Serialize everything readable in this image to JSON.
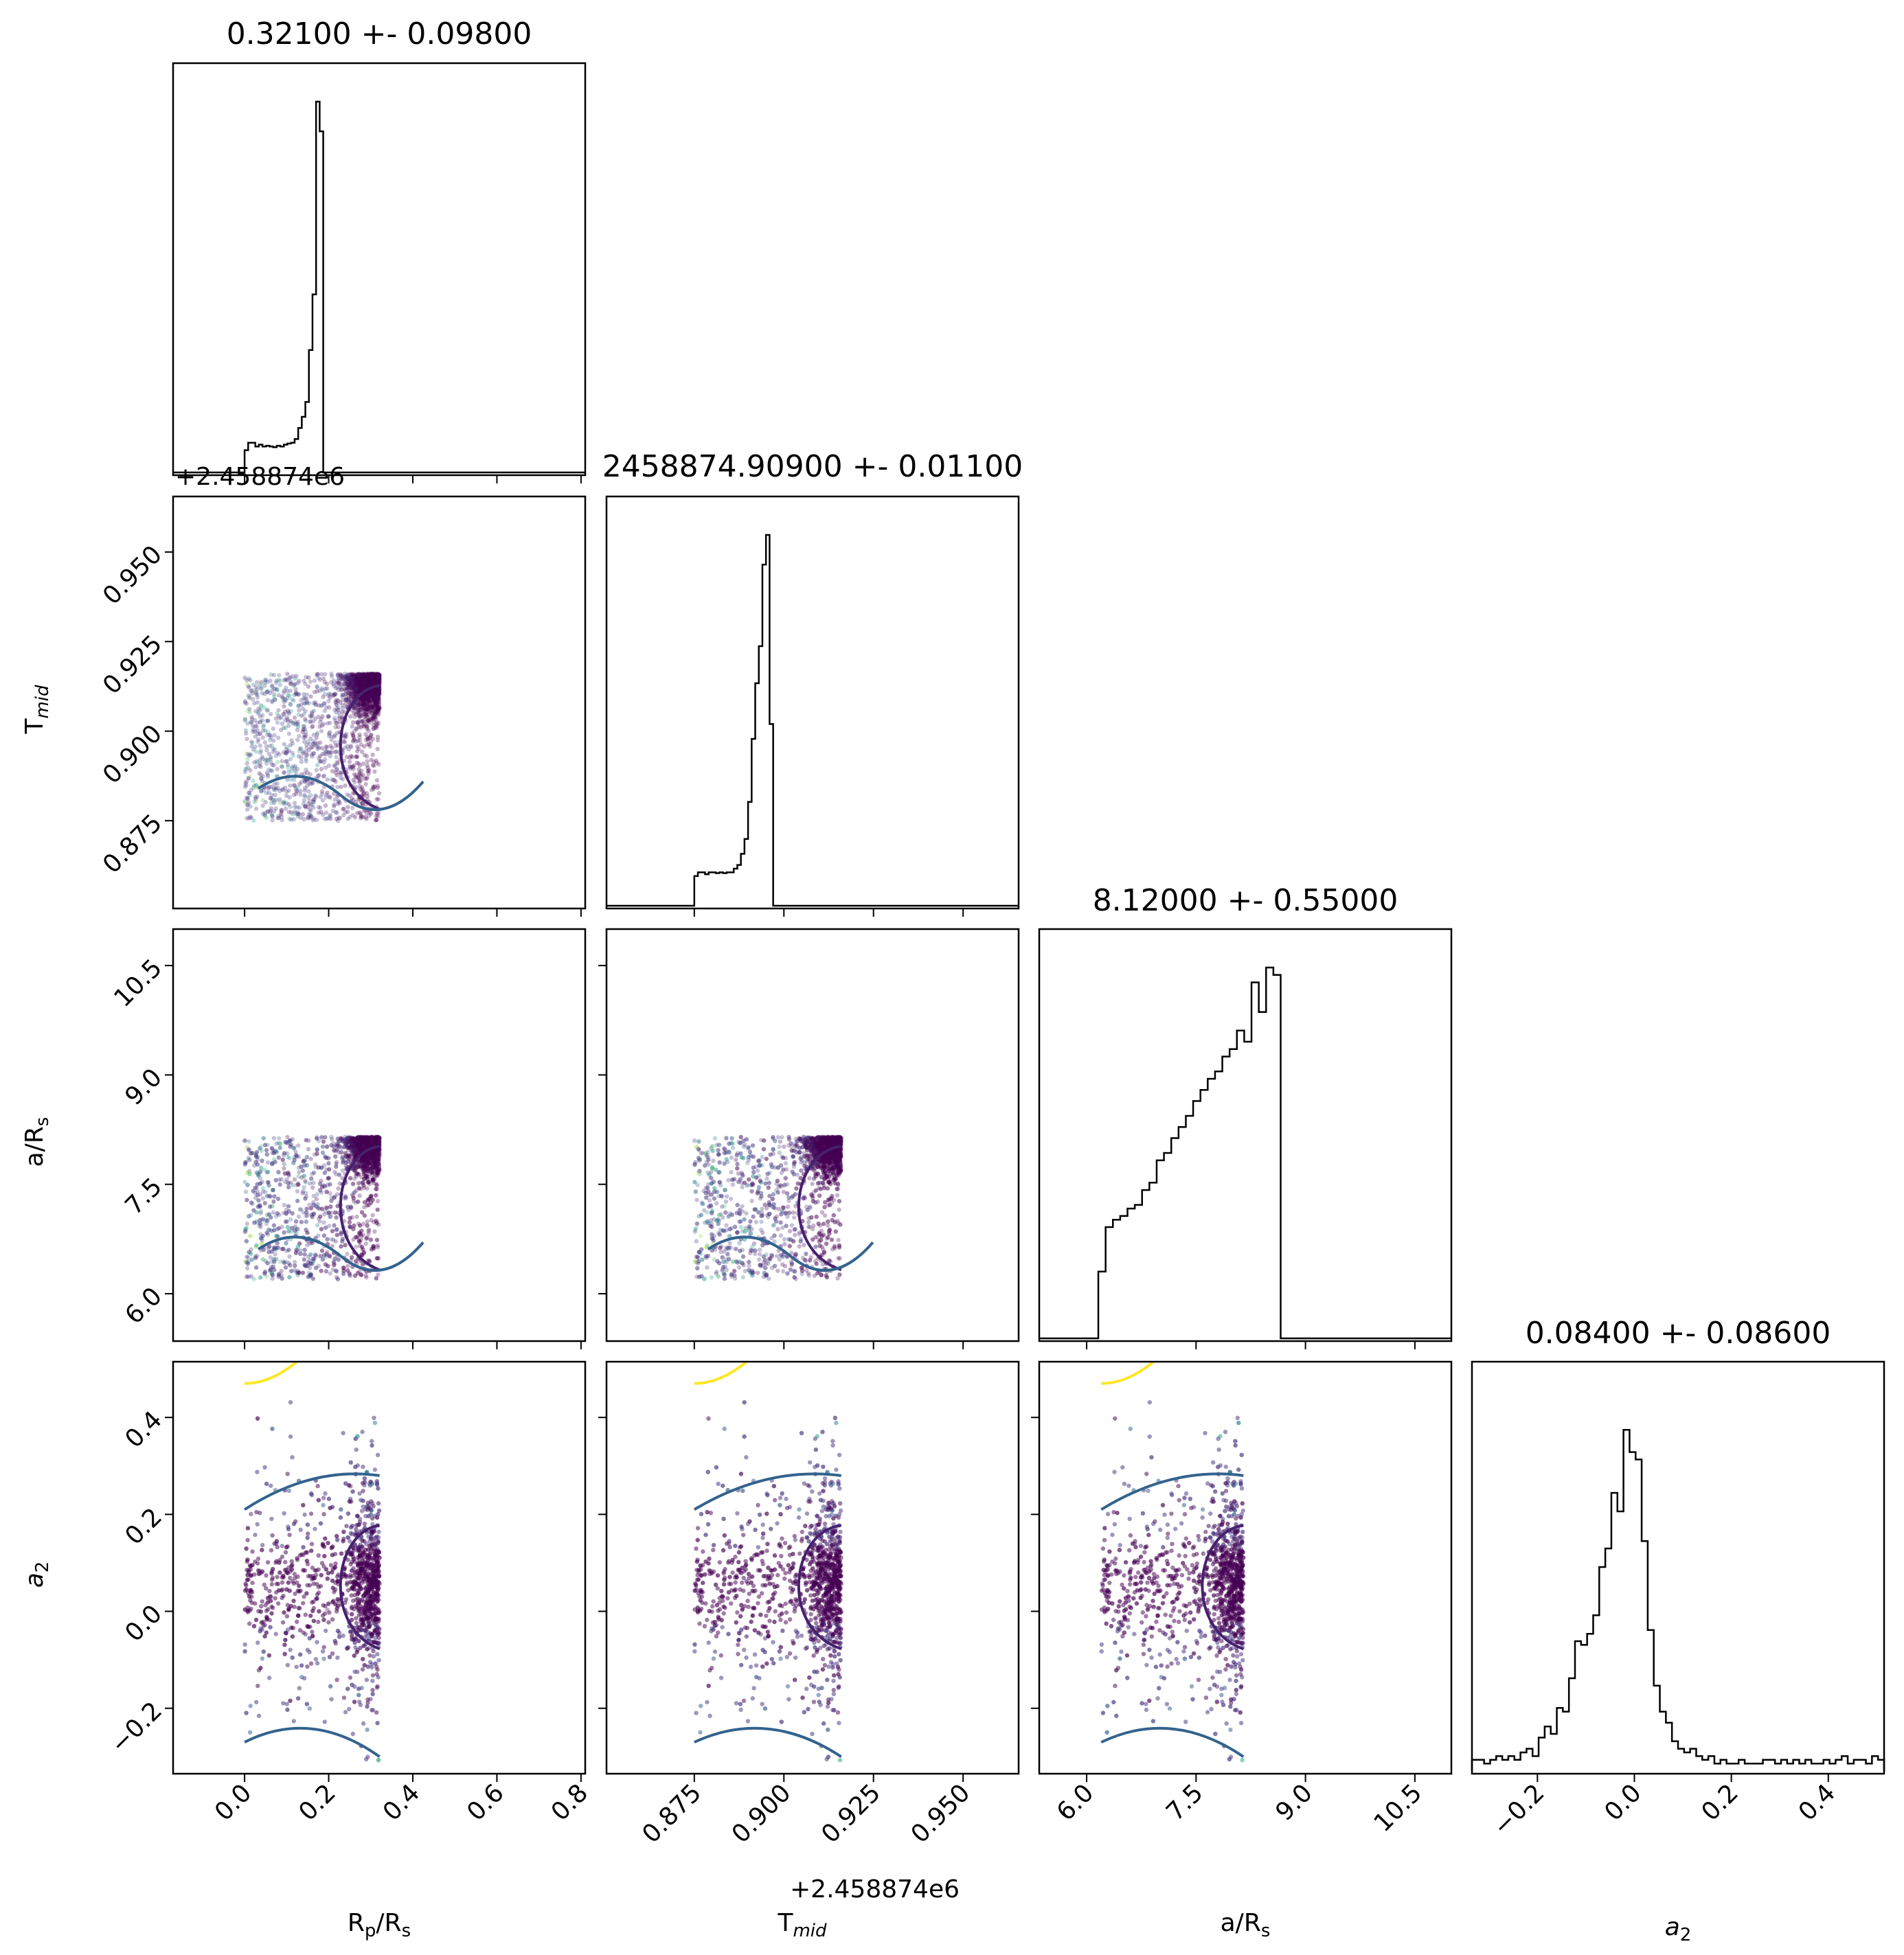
{
  "chart_data": {
    "type": "corner",
    "parameters": [
      {
        "name": "Rp/Rs",
        "label_main": "R",
        "label_sub1": "p",
        "label_mid": "/R",
        "label_sub2": "s",
        "title": "0.32100 +- 0.09800",
        "range": [
          -0.17,
          0.81
        ],
        "ticks": [
          0.0,
          0.2,
          0.4,
          0.6,
          0.8
        ],
        "tick_labels": [
          "0.0",
          "0.2",
          "0.4",
          "0.6",
          "0.8"
        ]
      },
      {
        "name": "Tmid",
        "label_main": "T",
        "label_sub1": "mid",
        "label_mid": "",
        "label_sub2": "",
        "title": "2458874.90900 +- 0.01100",
        "range": [
          0.8505,
          0.9655
        ],
        "ticks": [
          0.875,
          0.9,
          0.925,
          0.95
        ],
        "tick_labels": [
          "0.875",
          "0.900",
          "0.925",
          "0.950"
        ],
        "offset": "+2.458874e6"
      },
      {
        "name": "a/Rs",
        "label_main": "a/R",
        "label_sub1": "",
        "label_mid": "",
        "label_sub2": "s",
        "title": "8.12000 +- 0.55000",
        "range": [
          5.35,
          11.0
        ],
        "ticks": [
          6.0,
          7.5,
          9.0,
          10.5
        ],
        "tick_labels": [
          "6.0",
          "7.5",
          "9.0",
          "10.5"
        ]
      },
      {
        "name": "a2",
        "label_main": "a",
        "label_sub1": "",
        "label_mid": "",
        "label_sub2": "2",
        "title": "0.08400 +- 0.08600",
        "range": [
          -0.335,
          0.515
        ],
        "ticks": [
          -0.2,
          0.0,
          0.2,
          0.4
        ],
        "tick_labels": [
          "−0.2",
          "0.0",
          "0.2",
          "0.4"
        ]
      }
    ],
    "histograms": [
      {
        "param": "Rp/Rs",
        "bin_start": 0.0,
        "bin_width": 0.0085,
        "counts": [
          0.06,
          0.08,
          0.08,
          0.07,
          0.075,
          0.07,
          0.072,
          0.07,
          0.068,
          0.072,
          0.07,
          0.075,
          0.078,
          0.08,
          0.09,
          0.12,
          0.15,
          0.19,
          0.33,
          0.48,
          1.0,
          0.92,
          0.0
        ]
      },
      {
        "param": "Tmid",
        "bin_start": 0.875,
        "bin_width": 0.001,
        "counts": [
          0.08,
          0.09,
          0.09,
          0.085,
          0.09,
          0.09,
          0.088,
          0.09,
          0.088,
          0.09,
          0.09,
          0.1,
          0.11,
          0.14,
          0.18,
          0.28,
          0.45,
          0.6,
          0.7,
          0.92,
          1.0,
          0.49
        ]
      },
      {
        "param": "a/Rs",
        "bin_start": 6.16,
        "bin_width": 0.1,
        "counts": [
          0.18,
          0.3,
          0.32,
          0.33,
          0.35,
          0.36,
          0.4,
          0.42,
          0.48,
          0.5,
          0.54,
          0.57,
          0.6,
          0.64,
          0.67,
          0.7,
          0.72,
          0.76,
          0.78,
          0.83,
          0.8,
          0.96,
          0.88,
          1.0,
          0.98
        ]
      },
      {
        "param": "a2",
        "bin_start": -0.335,
        "bin_width": 0.0125,
        "counts": [
          0.03,
          0.03,
          0.02,
          0.03,
          0.04,
          0.03,
          0.04,
          0.03,
          0.05,
          0.06,
          0.04,
          0.09,
          0.12,
          0.1,
          0.17,
          0.16,
          0.25,
          0.35,
          0.34,
          0.37,
          0.42,
          0.55,
          0.6,
          0.75,
          0.7,
          0.92,
          0.86,
          0.84,
          0.62,
          0.38,
          0.23,
          0.16,
          0.13,
          0.08,
          0.06,
          0.05,
          0.06,
          0.04,
          0.03,
          0.04,
          0.02,
          0.03,
          0.02,
          0.02,
          0.03,
          0.02,
          0.02,
          0.02,
          0.03,
          0.03,
          0.02,
          0.03,
          0.02,
          0.03,
          0.02,
          0.03,
          0.02,
          0.02,
          0.03,
          0.02,
          0.03,
          0.04,
          0.02,
          0.03,
          0.03,
          0.02,
          0.04,
          0.03
        ]
      }
    ],
    "scatter_bounds": {
      "Rp/Rs": [
        0.0,
        0.321
      ],
      "Tmid": [
        0.875,
        0.916
      ],
      "a/Rs": [
        6.2,
        8.15
      ],
      "a2": [
        -0.335,
        0.515
      ]
    },
    "contour_colors": {
      "inner": "#46216e",
      "middle": "#33638d",
      "outer": "#fde725"
    },
    "point_colors": [
      "#440154",
      "#46327e",
      "#365c8d",
      "#277f8e",
      "#1fa187",
      "#4ac16d",
      "#a0da39",
      "#fde725"
    ]
  }
}
